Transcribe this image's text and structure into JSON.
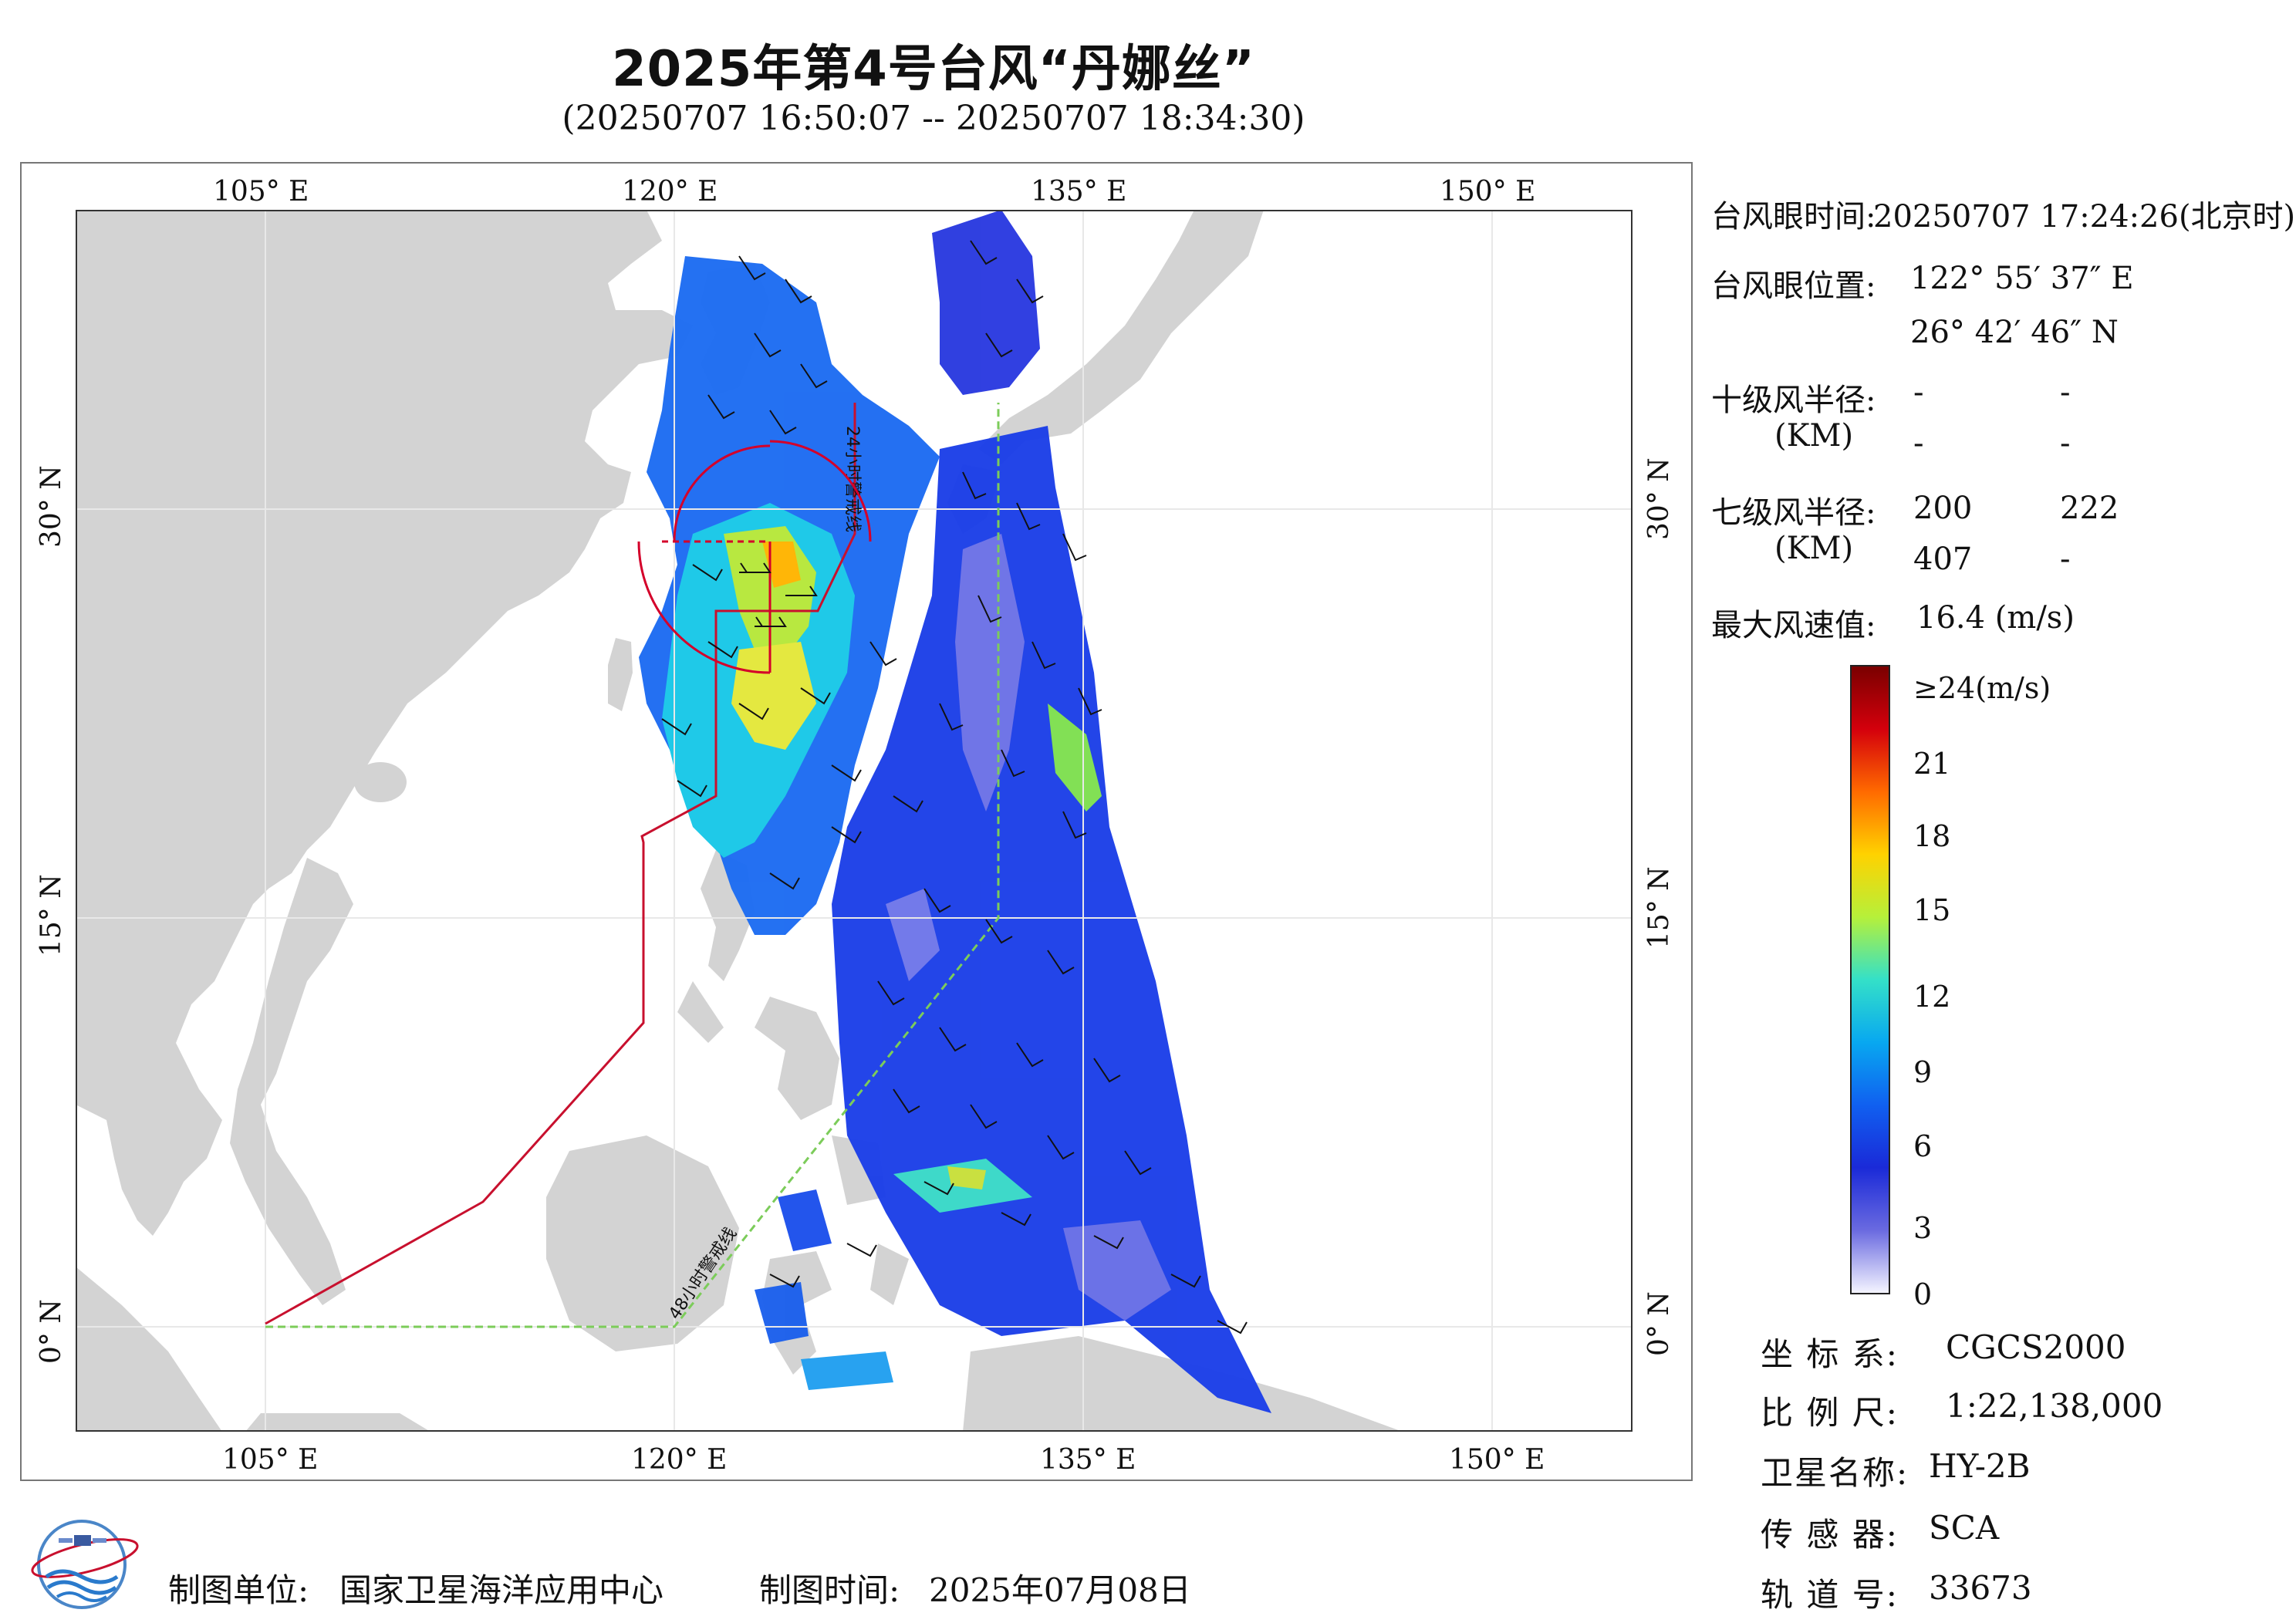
{
  "header": {
    "title": "2025年第4号台风“丹娜丝”",
    "subtitle": "(20250707 16:50:07 -- 20250707 18:34:30)"
  },
  "map": {
    "lon_labels": [
      "105° E",
      "120° E",
      "135° E",
      "150° E"
    ],
    "lat_labels": [
      "30° N",
      "15° N",
      "0° N"
    ],
    "line_labels": {
      "warning_24h": "24小时警戒线",
      "warning_48h": "48小时警戒线"
    },
    "colors": {
      "land": "#d3d3d3",
      "sea": "#ffffff",
      "warning_24h": "#c8102e",
      "warning_48h": "#7ccc5a",
      "typhoon_circle": "#d4002a"
    }
  },
  "info": {
    "eye_time_label": "台风眼时间:",
    "eye_time_value": "20250707 17:24:26(北京时)",
    "eye_pos_label": "台风眼位置:",
    "eye_lon": "122° 55′ 37″ E",
    "eye_lat": "26° 42′ 46″ N",
    "r10_label": "十级风半径:",
    "r10_unit": "(KM)",
    "r10_values": [
      "-",
      "-",
      "-",
      "-"
    ],
    "r7_label": "七级风半径:",
    "r7_unit": "(KM)",
    "r7_values": [
      "200",
      "222",
      "407",
      "-"
    ],
    "max_wind_label": "最大风速值:",
    "max_wind_value": "16.4 (m/s)"
  },
  "colorbar": {
    "top_label": "≥24(m/s)",
    "ticks": [
      "21",
      "18",
      "15",
      "12",
      "9",
      "6",
      "3",
      "0"
    ],
    "colors": [
      "#7a0000",
      "#d4000c",
      "#ff6a00",
      "#ffd200",
      "#b6f03a",
      "#34e0c8",
      "#08a8f0",
      "#1060f0",
      "#1a2ad8",
      "#6a6ae0",
      "#f4f4ff"
    ]
  },
  "meta": {
    "crs_label": "坐 标 系:",
    "crs_value": "CGCS2000",
    "scale_label": "比 例 尺:",
    "scale_value": "1:22,138,000",
    "sat_label": "卫星名称:",
    "sat_value": "HY-2B",
    "sensor_label": "传 感 器:",
    "sensor_value": "SCA",
    "orbit_label": "轨 道 号:",
    "orbit_value": "33673"
  },
  "footer": {
    "org_label": "制图单位:",
    "org_value": "国家卫星海洋应用中心",
    "date_label": "制图时间:",
    "date_value": "2025年07月08日"
  }
}
